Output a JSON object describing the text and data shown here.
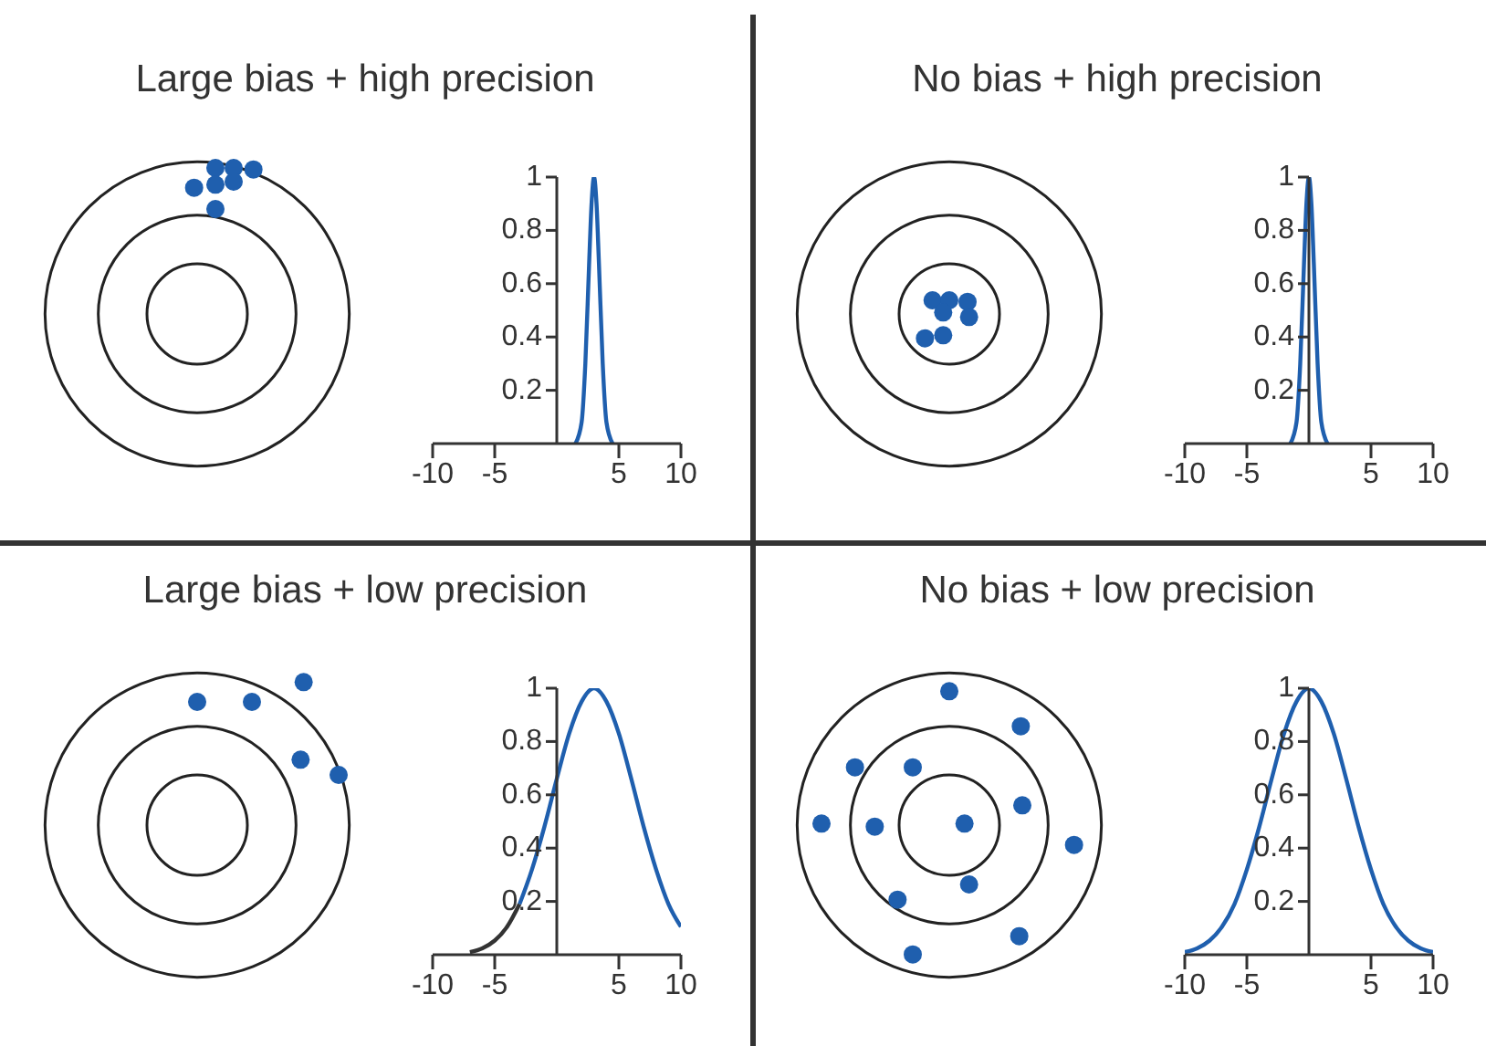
{
  "chart_data": [
    {
      "type": "line",
      "title": "Large bias + high precision",
      "xlim": [
        -10,
        10
      ],
      "xticks": [
        -10,
        -5,
        5,
        10
      ],
      "ylim": [
        0,
        1
      ],
      "yticks": [
        0.2,
        0.4,
        0.6,
        0.8,
        1
      ],
      "marker": "none",
      "series": [
        {
          "color": "#1f5fae",
          "x": [
            1.5,
            2,
            2.3,
            2.6,
            2.8,
            3,
            3.2,
            3.4,
            3.7,
            4,
            4.5
          ],
          "values": [
            0,
            0.08,
            0.3,
            0.67,
            0.9,
            1,
            0.9,
            0.67,
            0.3,
            0.08,
            0
          ]
        }
      ]
    },
    {
      "type": "line",
      "title": "No bias + high precision",
      "xlim": [
        -10,
        10
      ],
      "xticks": [
        -10,
        -5,
        5,
        10
      ],
      "ylim": [
        0,
        1
      ],
      "yticks": [
        0.2,
        0.4,
        0.6,
        0.8,
        1
      ],
      "marker": "none",
      "series": [
        {
          "color": "#1f5fae",
          "x": [
            -1.5,
            -1,
            -0.7,
            -0.4,
            -0.2,
            0,
            0.2,
            0.4,
            0.7,
            1,
            1.5
          ],
          "values": [
            0,
            0.08,
            0.3,
            0.67,
            0.9,
            1,
            0.9,
            0.67,
            0.3,
            0.08,
            0
          ]
        }
      ]
    },
    {
      "type": "line",
      "title": "Large bias + low precision",
      "xlim": [
        -10,
        10
      ],
      "xticks": [
        -10,
        -5,
        5,
        10
      ],
      "ylim": [
        0,
        1
      ],
      "yticks": [
        0.2,
        0.4,
        0.6,
        0.8,
        1
      ],
      "marker": "none",
      "series": [
        {
          "color": "#333333",
          "x": [
            -7,
            -6,
            -5,
            -4,
            -3
          ],
          "values": [
            0.01,
            0.024,
            0.053,
            0.105,
            0.19
          ]
        },
        {
          "color": "#1f5fae",
          "x": [
            -3,
            -2,
            -1,
            0,
            1,
            2,
            3,
            4,
            5,
            6,
            7,
            8,
            9,
            10
          ],
          "values": [
            0.19,
            0.32,
            0.48,
            0.66,
            0.83,
            0.95,
            1,
            0.95,
            0.83,
            0.66,
            0.48,
            0.32,
            0.19,
            0.105
          ]
        }
      ]
    },
    {
      "type": "line",
      "title": "No bias + low precision",
      "xlim": [
        -10,
        10
      ],
      "xticks": [
        -10,
        -5,
        5,
        10
      ],
      "ylim": [
        0,
        1
      ],
      "yticks": [
        0.2,
        0.4,
        0.6,
        0.8,
        1
      ],
      "marker": "none",
      "series": [
        {
          "color": "#1f5fae",
          "x": [
            -10,
            -9,
            -8,
            -7,
            -6,
            -5,
            -4,
            -3,
            -2,
            -1,
            0,
            1,
            2,
            3,
            4,
            5,
            6,
            7,
            8,
            9,
            10
          ],
          "values": [
            0.01,
            0.024,
            0.053,
            0.105,
            0.19,
            0.32,
            0.48,
            0.66,
            0.83,
            0.95,
            1,
            0.95,
            0.83,
            0.66,
            0.48,
            0.32,
            0.19,
            0.105,
            0.053,
            0.024,
            0.01
          ]
        }
      ]
    }
  ]
}
